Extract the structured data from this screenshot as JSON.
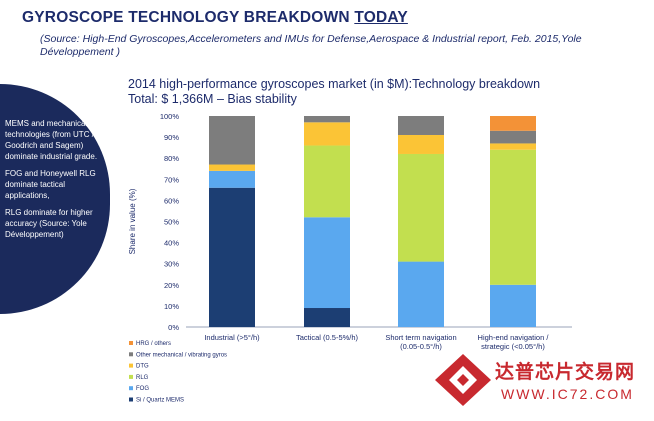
{
  "slide": {
    "title_main": "GYROSCOPE TECHNOLOGY BREAKDOWN",
    "title_emphasis": "TODAY",
    "source_note": "(Source: High-End Gyroscopes,Accelerometers and IMUs for Defense,Aerospace & Industrial  report,  Feb. 2015,Yole Développement )"
  },
  "sidebar": {
    "paragraphs": [
      "MEMS and mechanical technologies (from UTC / AIS Goodrich and Sagem) dominate industrial grade.",
      "FOG and Honeywell RLG dominate tactical applications,",
      "RLG dominate for higher accuracy (Source:  Yole Développement)"
    ]
  },
  "chart_data": {
    "type": "bar",
    "stacked": true,
    "title": "2014 high-performance gyroscopes market (in $M):Technology breakdown",
    "subtitle": "Total: $ 1,366M – Bias stability",
    "xlabel": "",
    "ylabel": "Share in value (%)",
    "ylim": [
      0,
      100
    ],
    "yticks": [
      "0%",
      "10%",
      "20%",
      "30%",
      "40%",
      "50%",
      "60%",
      "70%",
      "80%",
      "90%",
      "100%"
    ],
    "categories": [
      [
        "Industrial (>5°/h)"
      ],
      [
        "Tactical (0.5-5%/h)"
      ],
      [
        "Short term navigation",
        "(0.05-0.5°/h)"
      ],
      [
        "High-end navigation /",
        "strategic (<0.05°/h)"
      ]
    ],
    "series": [
      {
        "name": "Si / Quartz MEMS",
        "color": "#1c3e73",
        "values": [
          66,
          9,
          0,
          0
        ]
      },
      {
        "name": "FOG",
        "color": "#5aa8ef",
        "values": [
          8,
          43,
          31,
          20
        ]
      },
      {
        "name": "RLG",
        "color": "#c2df4f",
        "values": [
          0,
          34,
          51,
          64
        ]
      },
      {
        "name": "DTG",
        "color": "#fbc436",
        "values": [
          3,
          11,
          9,
          3
        ]
      },
      {
        "name": "Other mechanical / vibrating gyros",
        "color": "#7d7d7d",
        "values": [
          23,
          3,
          9,
          6
        ]
      },
      {
        "name": "HRG / others",
        "color": "#f39237",
        "values": [
          0,
          0,
          0,
          7
        ]
      }
    ],
    "legend_position": "bottom-left",
    "grid": false
  },
  "watermark": {
    "text_cn": "达普芯片交易网",
    "url": "WWW.IC72.COM",
    "color": "#c8292f"
  }
}
